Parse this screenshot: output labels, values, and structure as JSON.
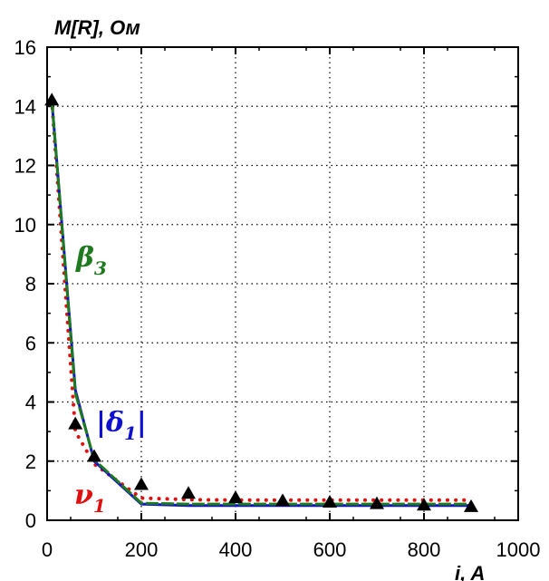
{
  "chart_data": {
    "type": "line",
    "title": "",
    "ylabel": "M[R], Ом",
    "xlabel": "i, A",
    "xlim": [
      0,
      1000
    ],
    "ylim": [
      0,
      16
    ],
    "x_ticks": [
      "0",
      "200",
      "400",
      "600",
      "800",
      "1000"
    ],
    "y_ticks": [
      "0",
      "2",
      "4",
      "6",
      "8",
      "10",
      "12",
      "14",
      "16"
    ],
    "grid": true,
    "series": [
      {
        "name": "β3",
        "label_base": "β",
        "label_sub": "3",
        "style": "dashed-line",
        "color": "#1e7a1e",
        "x": [
          10,
          60,
          100,
          200,
          300,
          400,
          500,
          600,
          700,
          800,
          900
        ],
        "y": [
          14.2,
          4.3,
          2.05,
          0.58,
          0.55,
          0.55,
          0.55,
          0.55,
          0.55,
          0.55,
          0.55
        ]
      },
      {
        "name": "|δ1|",
        "label_base": "|δ",
        "label_sub": "1",
        "label_end": "|",
        "style": "solid-line",
        "color": "#1010d0",
        "x": [
          10,
          60,
          100,
          200,
          300,
          400,
          500,
          600,
          700,
          800,
          900
        ],
        "y": [
          14.2,
          4.4,
          2.0,
          0.55,
          0.5,
          0.5,
          0.5,
          0.5,
          0.5,
          0.5,
          0.5
        ]
      },
      {
        "name": "ν1",
        "label_base": "ν",
        "label_sub": "1",
        "style": "dotted-line",
        "color": "#e01010",
        "x": [
          10,
          60,
          100,
          200,
          300,
          400,
          500,
          600,
          700,
          800,
          900
        ],
        "y": [
          14.2,
          3.0,
          1.9,
          0.75,
          0.7,
          0.68,
          0.68,
          0.68,
          0.68,
          0.68,
          0.68
        ]
      },
      {
        "name": "",
        "style": "triangle-markers",
        "color": "#000000",
        "x": [
          10,
          60,
          100,
          200,
          300,
          400,
          500,
          600,
          700,
          800,
          900
        ],
        "y": [
          14.2,
          3.25,
          2.15,
          1.2,
          0.9,
          0.75,
          0.65,
          0.6,
          0.55,
          0.5,
          0.45
        ]
      }
    ]
  }
}
